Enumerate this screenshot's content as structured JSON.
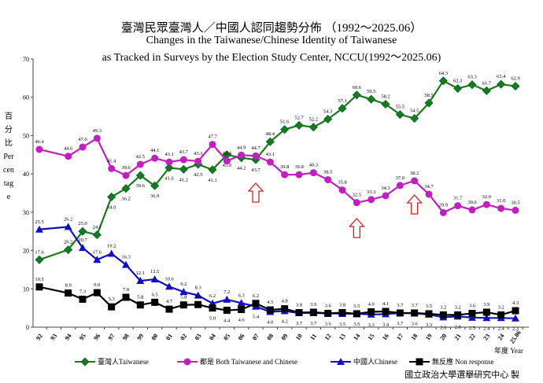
{
  "title": "臺灣民眾臺灣人／中國人認同趨勢分佈 （1992～2025.06）",
  "subtitle1": "Changes in the Taiwanese/Chinese Identity of Taiwanese",
  "subtitle2": "as Tracked in Surveys by the Election Study Center, NCCU(1992～2025.06)",
  "ylabel": "百分比 Percentage",
  "xlabel": "年度 Year",
  "footer": "國立政治大學選舉研究中心 製",
  "chart_data": {
    "type": "line",
    "ylim": [
      0,
      70
    ],
    "yticks": [
      0,
      10,
      20,
      30,
      40,
      50,
      60,
      70
    ],
    "xtick_labels": [
      "92",
      "93",
      "94",
      "95",
      "96",
      "97",
      "98",
      "99",
      "00",
      "01",
      "02",
      "03",
      "04",
      "05",
      "06",
      "07",
      "08",
      "09",
      "10",
      "11",
      "12",
      "13",
      "14",
      "15",
      "16",
      "17",
      "18",
      "19",
      "20",
      "21",
      "22",
      "23",
      "24",
      "25.06"
    ],
    "x": [
      "92",
      "94",
      "95",
      "96",
      "97",
      "98",
      "99",
      "00",
      "01",
      "02",
      "03",
      "04",
      "05",
      "06",
      "07",
      "08",
      "09",
      "10",
      "11",
      "12",
      "13",
      "14",
      "15",
      "16",
      "17",
      "18",
      "19",
      "20",
      "21",
      "22",
      "23",
      "24",
      "25.06"
    ],
    "legend_position": "bottom",
    "series": [
      {
        "name": "臺灣人Taiwanese",
        "color": "#1a7a1a",
        "marker": "diamond",
        "values": [
          17.6,
          20.2,
          25.0,
          24.1,
          34.0,
          36.2,
          39.6,
          36.9,
          41.6,
          41.2,
          42.5,
          41.1,
          45.0,
          44.2,
          43.7,
          48.4,
          51.6,
          52.7,
          52.2,
          54.3,
          57.1,
          60.6,
          59.5,
          58.2,
          55.5,
          54.5,
          58.5,
          64.3,
          62.3,
          63.3,
          61.7,
          63.4,
          62.9
        ]
      },
      {
        "name": "都是 Both Taiwanese and Chinese",
        "color": "#c020c0",
        "marker": "circle",
        "values": [
          46.4,
          44.6,
          47.0,
          49.3,
          41.4,
          39.6,
          42.5,
          44.1,
          43.1,
          43.7,
          43.3,
          47.7,
          43.4,
          44.9,
          44.7,
          43.1,
          39.8,
          39.8,
          40.3,
          38.5,
          35.8,
          32.5,
          33.3,
          34.3,
          37.0,
          38.2,
          34.7,
          29.9,
          31.7,
          30.6,
          32.0,
          31.0,
          30.5
        ]
      },
      {
        "name": "中國人Chinese",
        "color": "#1010c0",
        "marker": "triangle",
        "values": [
          25.5,
          26.2,
          20.7,
          17.6,
          19.2,
          16.3,
          12.1,
          12.5,
          10.6,
          9.2,
          8.3,
          6.2,
          7.2,
          6.3,
          5.4,
          4.0,
          4.2,
          3.7,
          3.7,
          3.6,
          3.5,
          3.5,
          3.3,
          3.4,
          3.7,
          3.6,
          3.3,
          2.6,
          2.8,
          2.5,
          2.4,
          2.4,
          2.3
        ]
      },
      {
        "name": "無反應 Non response",
        "color": "#000000",
        "marker": "square",
        "values": [
          10.5,
          8.9,
          7.3,
          9.0,
          5.3,
          7.8,
          5.8,
          6.5,
          4.7,
          5.8,
          5.9,
          5.0,
          4.4,
          4.6,
          6.2,
          4.5,
          4.8,
          3.8,
          3.9,
          3.6,
          3.8,
          3.5,
          4.0,
          4.1,
          3.7,
          3.7,
          3.5,
          3.2,
          3.2,
          3.6,
          3.9,
          3.2,
          4.3
        ]
      }
    ],
    "annotations": [
      {
        "type": "up-arrow",
        "x": "07",
        "color": "#d02020"
      },
      {
        "type": "up-arrow",
        "x": "14",
        "color": "#d02020"
      },
      {
        "type": "up-arrow",
        "x": "18",
        "color": "#d02020"
      }
    ]
  }
}
